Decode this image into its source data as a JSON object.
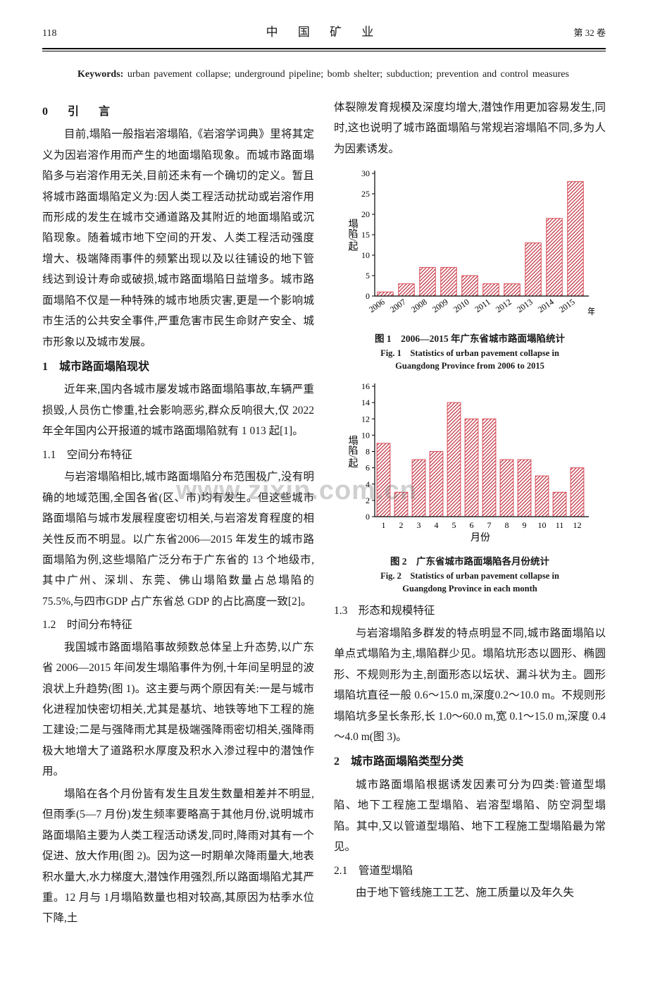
{
  "header": {
    "page_number": "118",
    "journal": "中 国 矿 业",
    "volume": "第 32 卷"
  },
  "keywords": {
    "label": "Keywords: ",
    "text": "urban pavement collapse;  underground pipeline;  bomb shelter;  subduction;  prevention and control measures"
  },
  "watermark": "www.zixin.com.cn",
  "left": {
    "h0": "0　引　言",
    "p1": "目前,塌陷一般指岩溶塌陷,《岩溶学词典》里将其定义为因岩溶作用而产生的地面塌陷现象。而城市路面塌陷多与岩溶作用无关,目前还未有一个确切的定义。暂且将城市路面塌陷定义为:因人类工程活动扰动或岩溶作用而形成的发生在城市交通道路及其附近的地面塌陷或沉陷现象。随着城市地下空间的开发、人类工程活动强度增大、极端降雨事件的频繁出现以及以往铺设的地下管线达到设计寿命或破损,城市路面塌陷日益增多。城市路面塌陷不仅是一种特殊的城市地质灾害,更是一个影响城市生活的公共安全事件,严重危害市民生命财产安全、城市形象以及城市发展。",
    "h1_1": "1　城市路面塌陷现状",
    "p2": "近年来,国内各城市屡发城市路面塌陷事故,车辆严重损毁,人员伤亡惨重,社会影响恶劣,群众反响很大,仅 2022 年全年国内公开报道的城市路面塌陷就有 1 013 起[1]。",
    "h1_1_1": "1.1　空间分布特征",
    "p3": "与岩溶塌陷相比,城市路面塌陷分布范围极广,没有明确的地域范围,全国各省(区、市)均有发生。但这些城市路面塌陷与城市发展程度密切相关,与岩溶发育程度的相关性反而不明显。以广东省2006—2015 年发生的城市路面塌陷为例,这些塌陷广泛分布于广东省的 13 个地级市,其中广州、深圳、东莞、佛山塌陷数量占总塌陷的 75.5%,与四市GDP 占广东省总 GDP 的占比高度一致[2]。",
    "h1_1_2": "1.2　时间分布特征",
    "p4": "我国城市路面塌陷事故频数总体呈上升态势,以广东省 2006—2015 年间发生塌陷事件为例,十年间呈明显的波浪状上升趋势(图 1)。这主要与两个原因有关:一是与城市化进程加快密切相关,尤其是基坑、地铁等地下工程的施工建设;二是与强降雨尤其是极端强降雨密切相关,强降雨极大地增大了道路积水厚度及积水入渗过程中的潜蚀作用。",
    "p5": "塌陷在各个月份皆有发生且发生数量相差并不明显,但雨季(5—7 月份)发生频率要略高于其他月份,说明城市路面塌陷主要为人类工程活动诱发,同时,降雨对其有一个促进、放大作用(图 2)。因为这一时期单次降雨量大,地表积水量大,水力梯度大,潜蚀作用强烈,所以路面塌陷尤其严重。12 月与 1月塌陷数量也相对较高,其原因为枯季水位下降,土"
  },
  "right": {
    "p_cont": "体裂隙发育规模及深度均增大,潜蚀作用更加容易发生,同时,这也说明了城市路面塌陷与常规岩溶塌陷不同,多为人为因素诱发。",
    "fig1": {
      "caption_cn": "图 1　2006—2015 年广东省城市路面塌陷统计",
      "caption_en1": "Fig. 1　Statistics of urban pavement collapse in",
      "caption_en2": "Guangdong Province from 2006 to 2015",
      "type": "bar",
      "categories": [
        "2006",
        "2007",
        "2008",
        "2009",
        "2010",
        "2011",
        "2012",
        "2013",
        "2014",
        "2015"
      ],
      "values": [
        1,
        3,
        7,
        7,
        5,
        3,
        3,
        13,
        19,
        28
      ],
      "ylabel": "塌陷/起",
      "xlabel_suffix": "年",
      "ylim": [
        0,
        30
      ],
      "ytick_step": 5,
      "bar_color": "#d94a55",
      "hatch_color": "#c03040",
      "background_color": "#ffffff",
      "axis_color": "#000000",
      "bar_width_ratio": 0.75,
      "tick_fontsize": 12,
      "label_fontsize": 14
    },
    "fig2": {
      "caption_cn": "图 2　广东省城市路面塌陷各月份统计",
      "caption_en1": "Fig. 2　Statistics of urban pavement collapse in",
      "caption_en2": "Guangdong Province in each month",
      "type": "bar",
      "categories": [
        "1",
        "2",
        "3",
        "4",
        "5",
        "6",
        "7",
        "8",
        "9",
        "10",
        "11",
        "12"
      ],
      "values": [
        9,
        3,
        7,
        8,
        14,
        12,
        12,
        7,
        7,
        5,
        3,
        6
      ],
      "ylabel": "塌陷/起",
      "xlabel": "月份",
      "ylim": [
        0,
        16
      ],
      "ytick_step": 2,
      "bar_color": "#d94a55",
      "hatch_color": "#c03040",
      "background_color": "#ffffff",
      "axis_color": "#000000",
      "bar_width_ratio": 0.75,
      "tick_fontsize": 12,
      "label_fontsize": 14
    },
    "h1_1_3": "1.3　形态和规模特征",
    "p6": "与岩溶塌陷多群发的特点明显不同,城市路面塌陷以单点式塌陷为主,塌陷群少见。塌陷坑形态以圆形、椭圆形、不规则形为主,剖面形态以坛状、漏斗状为主。圆形塌陷坑直径一般 0.6～15.0 m,深度0.2～10.0 m。不规则形塌陷坑多呈长条形,长 1.0～60.0 m,宽 0.1～15.0 m,深度 0.4～4.0 m(图 3)。",
    "h1_2": "2　城市路面塌陷类型分类",
    "p7": "城市路面塌陷根据诱发因素可分为四类:管道型塌陷、地下工程施工型塌陷、岩溶型塌陷、防空洞型塌陷。其中,又以管道型塌陷、地下工程施工型塌陷最为常见。",
    "h1_2_1": "2.1　管道型塌陷",
    "p8": "由于地下管线施工工艺、施工质量以及年久失"
  }
}
